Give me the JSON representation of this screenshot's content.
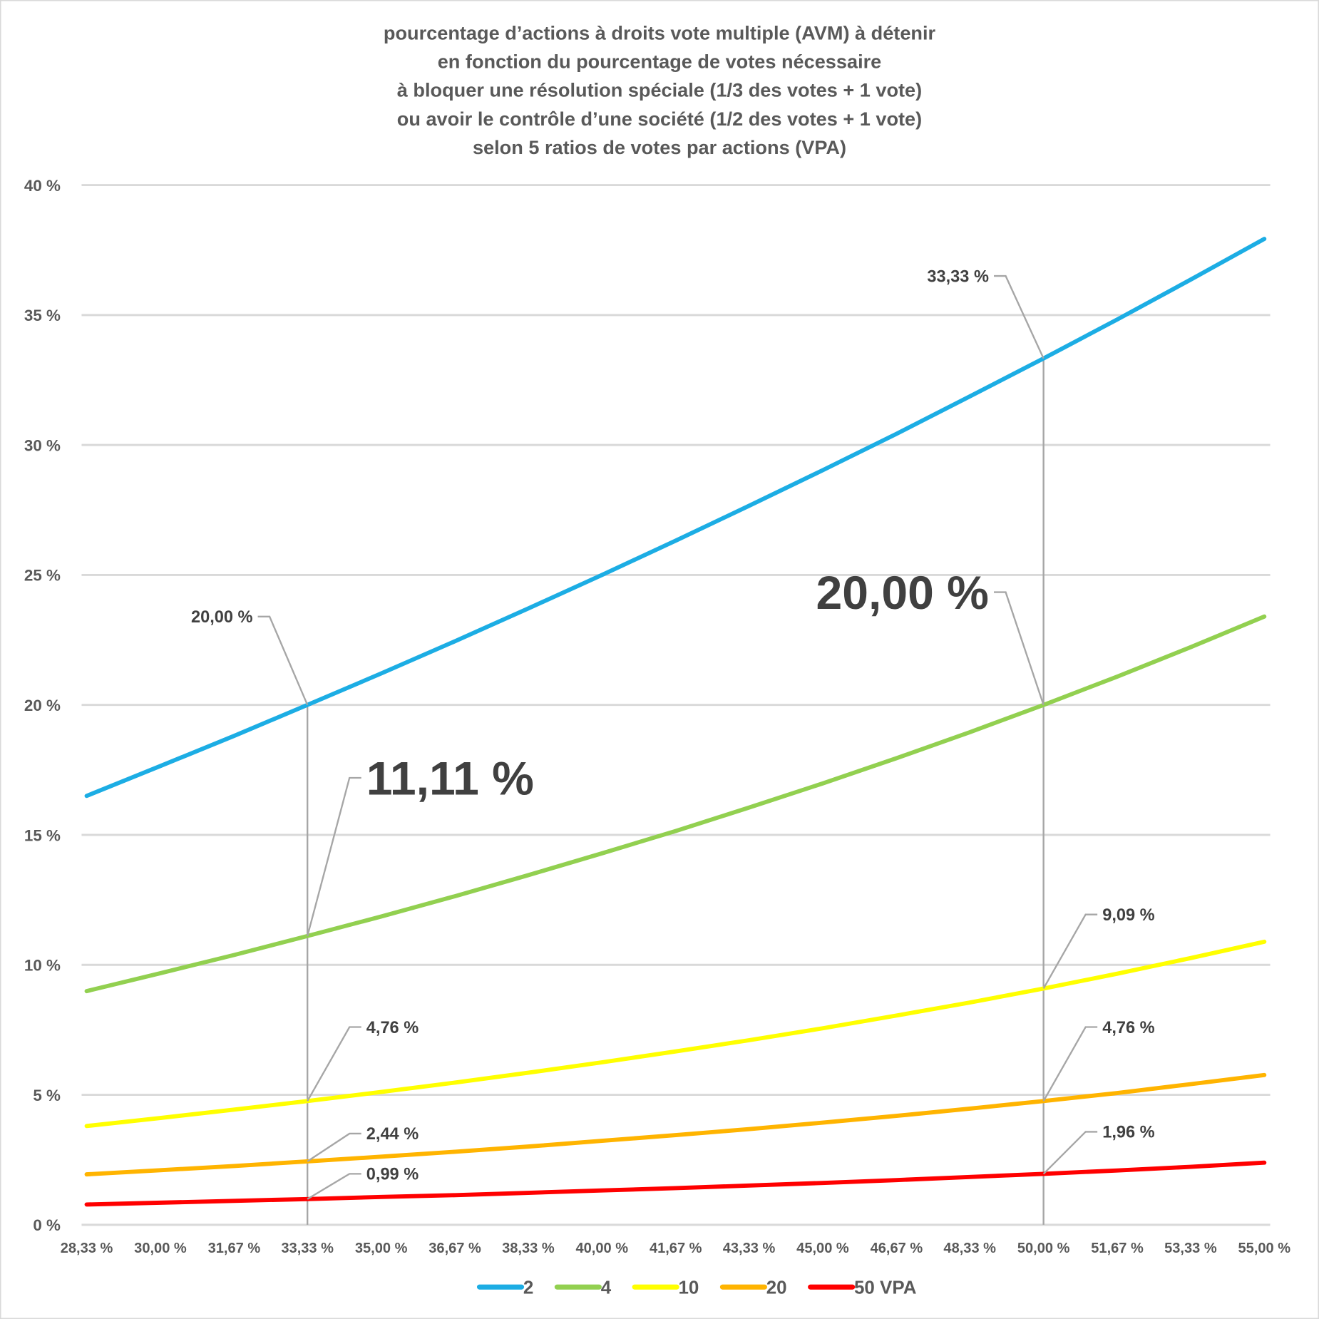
{
  "chart_data": {
    "type": "line",
    "title_lines": [
      "pourcentage d’actions à droits vote multiple (AVM) à détenir",
      "en fonction du pourcentage de votes nécessaire",
      "à bloquer une résolution spéciale (1/3 des votes + 1 vote)",
      "ou avoir le contrôle d’une société (1/2 des votes + 1 vote)",
      "selon 5 ratios de votes par actions (VPA)"
    ],
    "xlabel": "",
    "ylabel": "",
    "ylim": [
      0,
      40
    ],
    "xlim": [
      28.33,
      55.0
    ],
    "grid": "horizontal",
    "legend_position": "bottom",
    "y_ticks": [
      "0 %",
      "5 %",
      "10 %",
      "15 %",
      "20 %",
      "25 %",
      "30 %",
      "35 %",
      "40 %"
    ],
    "y_tick_values": [
      0,
      5,
      10,
      15,
      20,
      25,
      30,
      35,
      40
    ],
    "x_ticks": [
      "28,33 %",
      "30,00 %",
      "31,67 %",
      "33,33 %",
      "35,00 %",
      "36,67 %",
      "38,33 %",
      "40,00 %",
      "41,67 %",
      "43,33 %",
      "45,00 %",
      "46,67 %",
      "48,33 %",
      "50,00 %",
      "51,67 %",
      "53,33 %",
      "55,00 %"
    ],
    "x": [
      28.33,
      30.0,
      31.67,
      33.33,
      35.0,
      36.67,
      38.33,
      40.0,
      41.67,
      43.33,
      45.0,
      46.67,
      48.33,
      50.0,
      51.67,
      53.33,
      55.0
    ],
    "series": [
      {
        "name": "2",
        "color": "#1cade4",
        "values": [
          16.5,
          17.65,
          18.81,
          20.0,
          21.21,
          22.45,
          23.71,
          25.0,
          26.32,
          27.66,
          29.03,
          30.43,
          31.87,
          33.33,
          34.83,
          36.36,
          37.93
        ]
      },
      {
        "name": "4",
        "color": "#92d050",
        "values": [
          8.99,
          9.68,
          10.38,
          11.11,
          11.86,
          12.64,
          13.45,
          14.29,
          15.15,
          16.05,
          16.98,
          17.95,
          18.95,
          20.0,
          21.09,
          22.22,
          23.4
        ]
      },
      {
        "name": "10",
        "color": "#ffff00",
        "values": [
          3.8,
          4.11,
          4.43,
          4.76,
          5.11,
          5.47,
          5.85,
          6.25,
          6.67,
          7.1,
          7.56,
          8.05,
          8.55,
          9.09,
          9.66,
          10.26,
          10.89
        ]
      },
      {
        "name": "20",
        "color": "#ffb400",
        "values": [
          1.94,
          2.1,
          2.26,
          2.44,
          2.62,
          2.81,
          3.01,
          3.23,
          3.45,
          3.68,
          3.93,
          4.19,
          4.47,
          4.76,
          5.07,
          5.41,
          5.76
        ]
      },
      {
        "name": "50 VPA",
        "color": "#ff0000",
        "values": [
          0.78,
          0.85,
          0.92,
          0.99,
          1.07,
          1.14,
          1.23,
          1.32,
          1.41,
          1.51,
          1.61,
          1.72,
          1.84,
          1.96,
          2.09,
          2.23,
          2.39
        ]
      }
    ],
    "reference_lines_x": [
      33.33,
      50.0
    ],
    "annotations": [
      {
        "text": "20,00 %",
        "x": 33.33,
        "y": 20.0,
        "emphasis": false,
        "side": "left"
      },
      {
        "text": "11,11 %",
        "x": 33.33,
        "y": 11.11,
        "emphasis": true,
        "side": "right"
      },
      {
        "text": "4,76 %",
        "x": 33.33,
        "y": 4.76,
        "emphasis": false,
        "side": "right"
      },
      {
        "text": "2,44 %",
        "x": 33.33,
        "y": 2.44,
        "emphasis": false,
        "side": "right"
      },
      {
        "text": "0,99 %",
        "x": 33.33,
        "y": 0.99,
        "emphasis": false,
        "side": "right"
      },
      {
        "text": "33,33 %",
        "x": 50.0,
        "y": 33.33,
        "emphasis": false,
        "side": "left"
      },
      {
        "text": "20,00 %",
        "x": 50.0,
        "y": 20.0,
        "emphasis": true,
        "side": "left"
      },
      {
        "text": "9,09 %",
        "x": 50.0,
        "y": 9.09,
        "emphasis": false,
        "side": "right"
      },
      {
        "text": "4,76 %",
        "x": 50.0,
        "y": 4.76,
        "emphasis": false,
        "side": "right"
      },
      {
        "text": "1,96 %",
        "x": 50.0,
        "y": 1.96,
        "emphasis": false,
        "side": "right"
      }
    ]
  }
}
